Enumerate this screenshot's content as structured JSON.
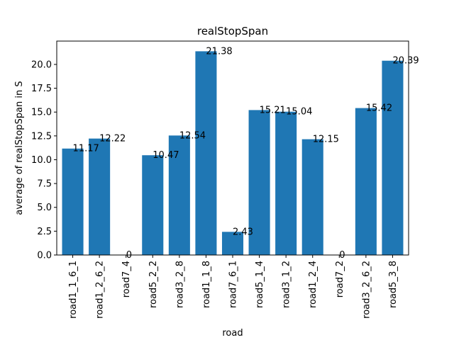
{
  "chart_data": {
    "type": "bar",
    "title": "realStopSpan",
    "xlabel": "road",
    "ylabel": "average of realStopSpan in S",
    "ylim": [
      0,
      22.45
    ],
    "yticks": [
      "0.0",
      "2.5",
      "5.0",
      "7.5",
      "10.0",
      "12.5",
      "15.0",
      "17.5",
      "20.0"
    ],
    "ytick_values": [
      0,
      2.5,
      5,
      7.5,
      10,
      12.5,
      15,
      17.5,
      20
    ],
    "categories": [
      "road1_1_6_1",
      "road1_2_6_2",
      "road7_4",
      "road5_2_2",
      "road3_2_8",
      "road1_1_8",
      "road7_6_1",
      "road5_1_4",
      "road3_1_2",
      "road1_2_4",
      "road7_2",
      "road3_2_6_2",
      "road5_3_8"
    ],
    "values": [
      11.17,
      12.22,
      0,
      10.47,
      12.54,
      21.38,
      2.43,
      15.21,
      15.04,
      12.15,
      0,
      15.42,
      20.39
    ],
    "data_labels": [
      "11.17",
      "12.22",
      "0",
      "10.47",
      "12.54",
      "21.38",
      "2.43",
      "15.21",
      "15.04",
      "12.15",
      "0",
      "15.42",
      "20.39"
    ],
    "bar_color": "#1f77b4",
    "grid": false,
    "legend": "none"
  }
}
